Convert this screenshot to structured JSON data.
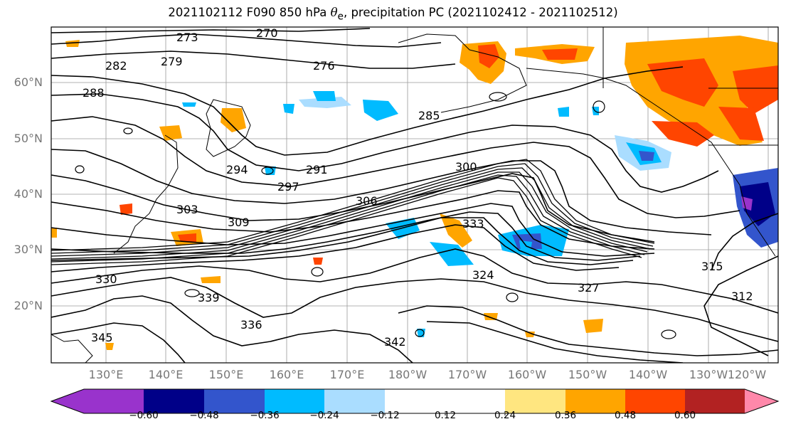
{
  "title": {
    "pre": "2021102112 F090 850 hPa ",
    "theta": "θ",
    "sub": "e",
    "post": ", precipitation PC (2021102412 - 2021102512)"
  },
  "lat_labels": [
    "60°N",
    "50°N",
    "40°N",
    "30°N",
    "20°N"
  ],
  "lon_labels": [
    "130°E",
    "140°E",
    "150°E",
    "160°E",
    "170°E",
    "180°W",
    "170°W",
    "160°W",
    "150°W",
    "140°W",
    "130°W",
    "120°W"
  ],
  "contour_labels": [
    "270",
    "273",
    "276",
    "279",
    "282",
    "285",
    "288",
    "291",
    "294",
    "297",
    "300",
    "303",
    "306",
    "309",
    "312",
    "315",
    "324",
    "327",
    "330",
    "333",
    "336",
    "339",
    "342",
    "345"
  ],
  "colorbar": {
    "ticks": [
      "−0.60",
      "−0.48",
      "−0.36",
      "−0.24",
      "−0.12",
      "0.12",
      "0.24",
      "0.36",
      "0.48",
      "0.60"
    ],
    "colors": [
      "#9933cc",
      "#000088",
      "#3355cc",
      "#00bbff",
      "#aaddff",
      "#ffffff",
      "#ffe680",
      "#ffa500",
      "#ff4500",
      "#b22222",
      "#ff88aa"
    ]
  }
}
